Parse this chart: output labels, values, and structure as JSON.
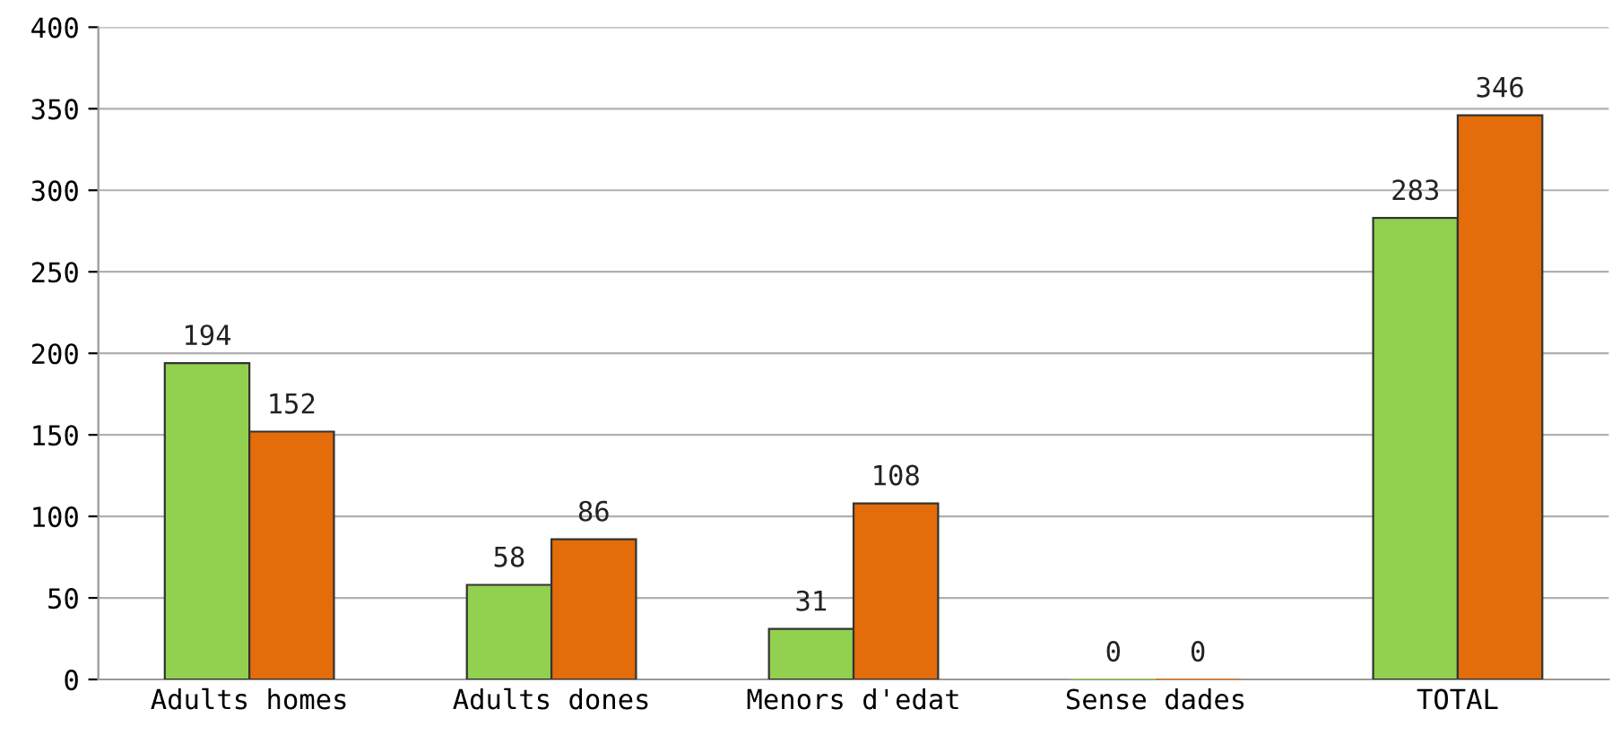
{
  "chart_data": {
    "type": "bar",
    "categories": [
      "Adults homes",
      "Adults dones",
      "Menors d'edat",
      "Sense dades",
      "TOTAL"
    ],
    "series": [
      {
        "color": "#92d050",
        "values": [
          194,
          58,
          31,
          0,
          283
        ]
      },
      {
        "color": "#e46c0a",
        "values": [
          152,
          86,
          108,
          0,
          346
        ]
      }
    ],
    "ylim": [
      0,
      400
    ],
    "yticks": [
      0,
      50,
      100,
      150,
      200,
      250,
      300,
      350,
      400
    ],
    "grid": "y",
    "data_labels": true
  }
}
